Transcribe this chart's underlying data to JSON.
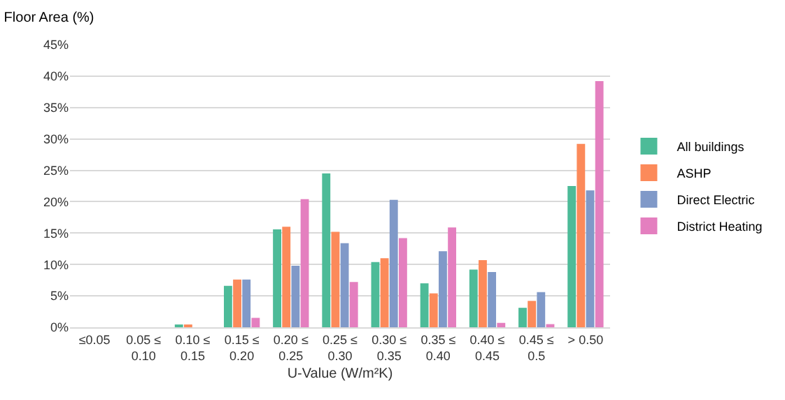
{
  "chart_data": {
    "type": "bar",
    "title": "Floor Area (%)",
    "xlabel": "U-Value (W/m²K)",
    "categories": [
      "≤0.05",
      "0.05 ≤\n0.10",
      "0.10 ≤\n0.15",
      "0.15 ≤\n0.20",
      "0.20 ≤\n0.25",
      "0.25 ≤\n0.30",
      "0.30 ≤\n0.35",
      "0.35 ≤\n0.40",
      "0.40 ≤\n0.45",
      "0.45 ≤\n0.5",
      "> 0.50"
    ],
    "series": [
      {
        "name": "All buildings",
        "color": "#4dbb98",
        "values": [
          0,
          0,
          0.4,
          6.6,
          15.6,
          24.5,
          10.4,
          7.0,
          9.2,
          3.1,
          22.5
        ]
      },
      {
        "name": "ASHP",
        "color": "#fc8a5a",
        "values": [
          0,
          0,
          0.3,
          7.6,
          16.0,
          15.2,
          11.0,
          5.4,
          10.7,
          4.2,
          29.2
        ]
      },
      {
        "name": "Direct Electric",
        "color": "#8099c8",
        "values": [
          0,
          0,
          0,
          7.6,
          9.8,
          13.4,
          20.3,
          12.1,
          8.8,
          5.6,
          21.8
        ]
      },
      {
        "name": "District Heating",
        "color": "#e47fbf",
        "values": [
          0,
          0,
          0,
          1.5,
          20.4,
          7.2,
          14.2,
          15.9,
          0.7,
          0.5,
          39.2
        ]
      }
    ],
    "ylim": [
      0,
      45
    ],
    "yticks": [
      {
        "value": 0,
        "label": "0%"
      },
      {
        "value": 5,
        "label": "5%"
      },
      {
        "value": 10,
        "label": "10%"
      },
      {
        "value": 15,
        "label": "15%"
      },
      {
        "value": 20,
        "label": "20%"
      },
      {
        "value": 25,
        "label": "25%"
      },
      {
        "value": 30,
        "label": "30%"
      },
      {
        "value": 35,
        "label": "35%"
      },
      {
        "value": 40,
        "label": "40%"
      },
      {
        "value": 45,
        "label": "45%"
      }
    ],
    "grid": "y",
    "legend": "right"
  }
}
